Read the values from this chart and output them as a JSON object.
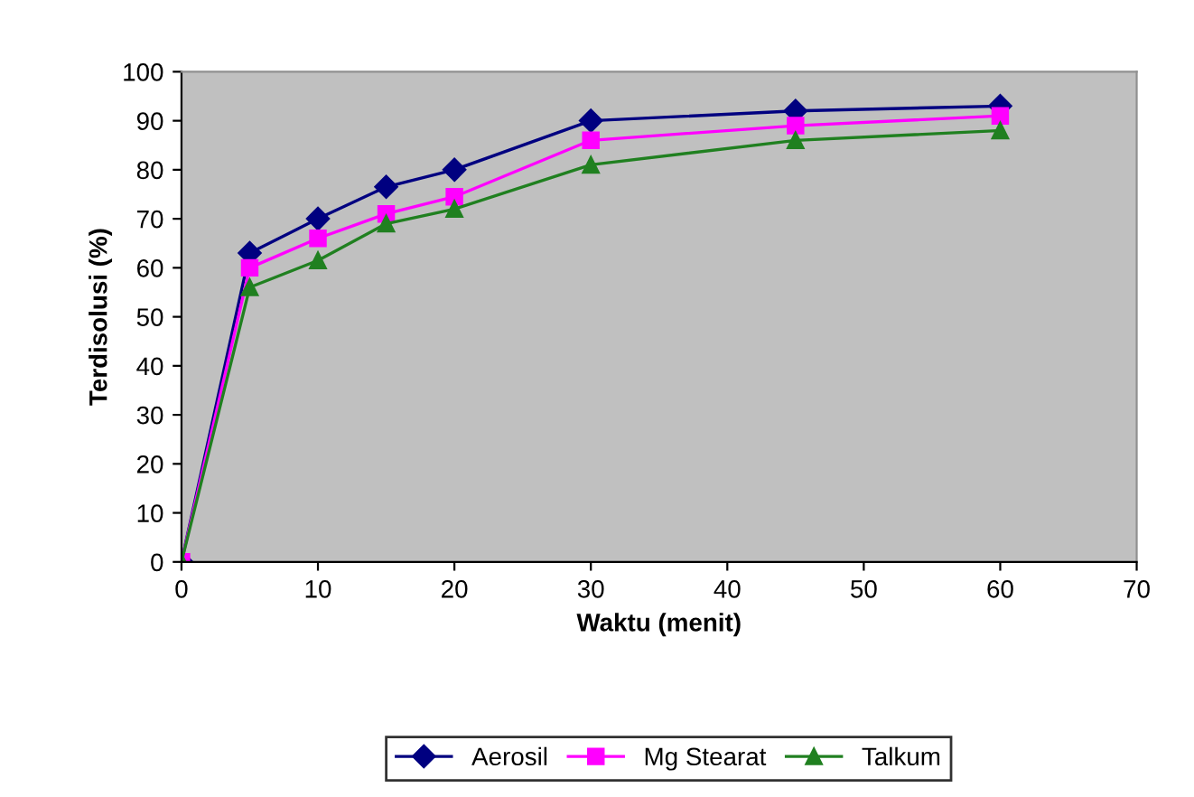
{
  "chart_data": {
    "type": "line",
    "xlabel": "Waktu (menit)",
    "ylabel": "Terdisolusi (%)",
    "x": [
      0,
      5,
      10,
      15,
      20,
      30,
      45,
      60
    ],
    "series": [
      {
        "name": "Aerosil",
        "color": "#000080",
        "marker": "diamond",
        "values": [
          0,
          63,
          70,
          76.5,
          80,
          90,
          92,
          93
        ]
      },
      {
        "name": "Mg Stearat",
        "color": "#ff00ff",
        "marker": "square",
        "values": [
          0,
          60,
          66,
          71,
          74.5,
          86,
          89,
          91
        ]
      },
      {
        "name": "Talkum",
        "color": "#208020",
        "marker": "triangle",
        "values": [
          0,
          56,
          61.5,
          69,
          72,
          81,
          86,
          88
        ]
      }
    ],
    "xlim": [
      0,
      70
    ],
    "xticks": [
      0,
      10,
      20,
      30,
      40,
      50,
      60,
      70
    ],
    "ylim": [
      0,
      100
    ],
    "yticks": [
      0,
      10,
      20,
      30,
      40,
      50,
      60,
      70,
      80,
      90,
      100
    ],
    "grid": false,
    "legend": "bottom",
    "line_style": "solid"
  }
}
